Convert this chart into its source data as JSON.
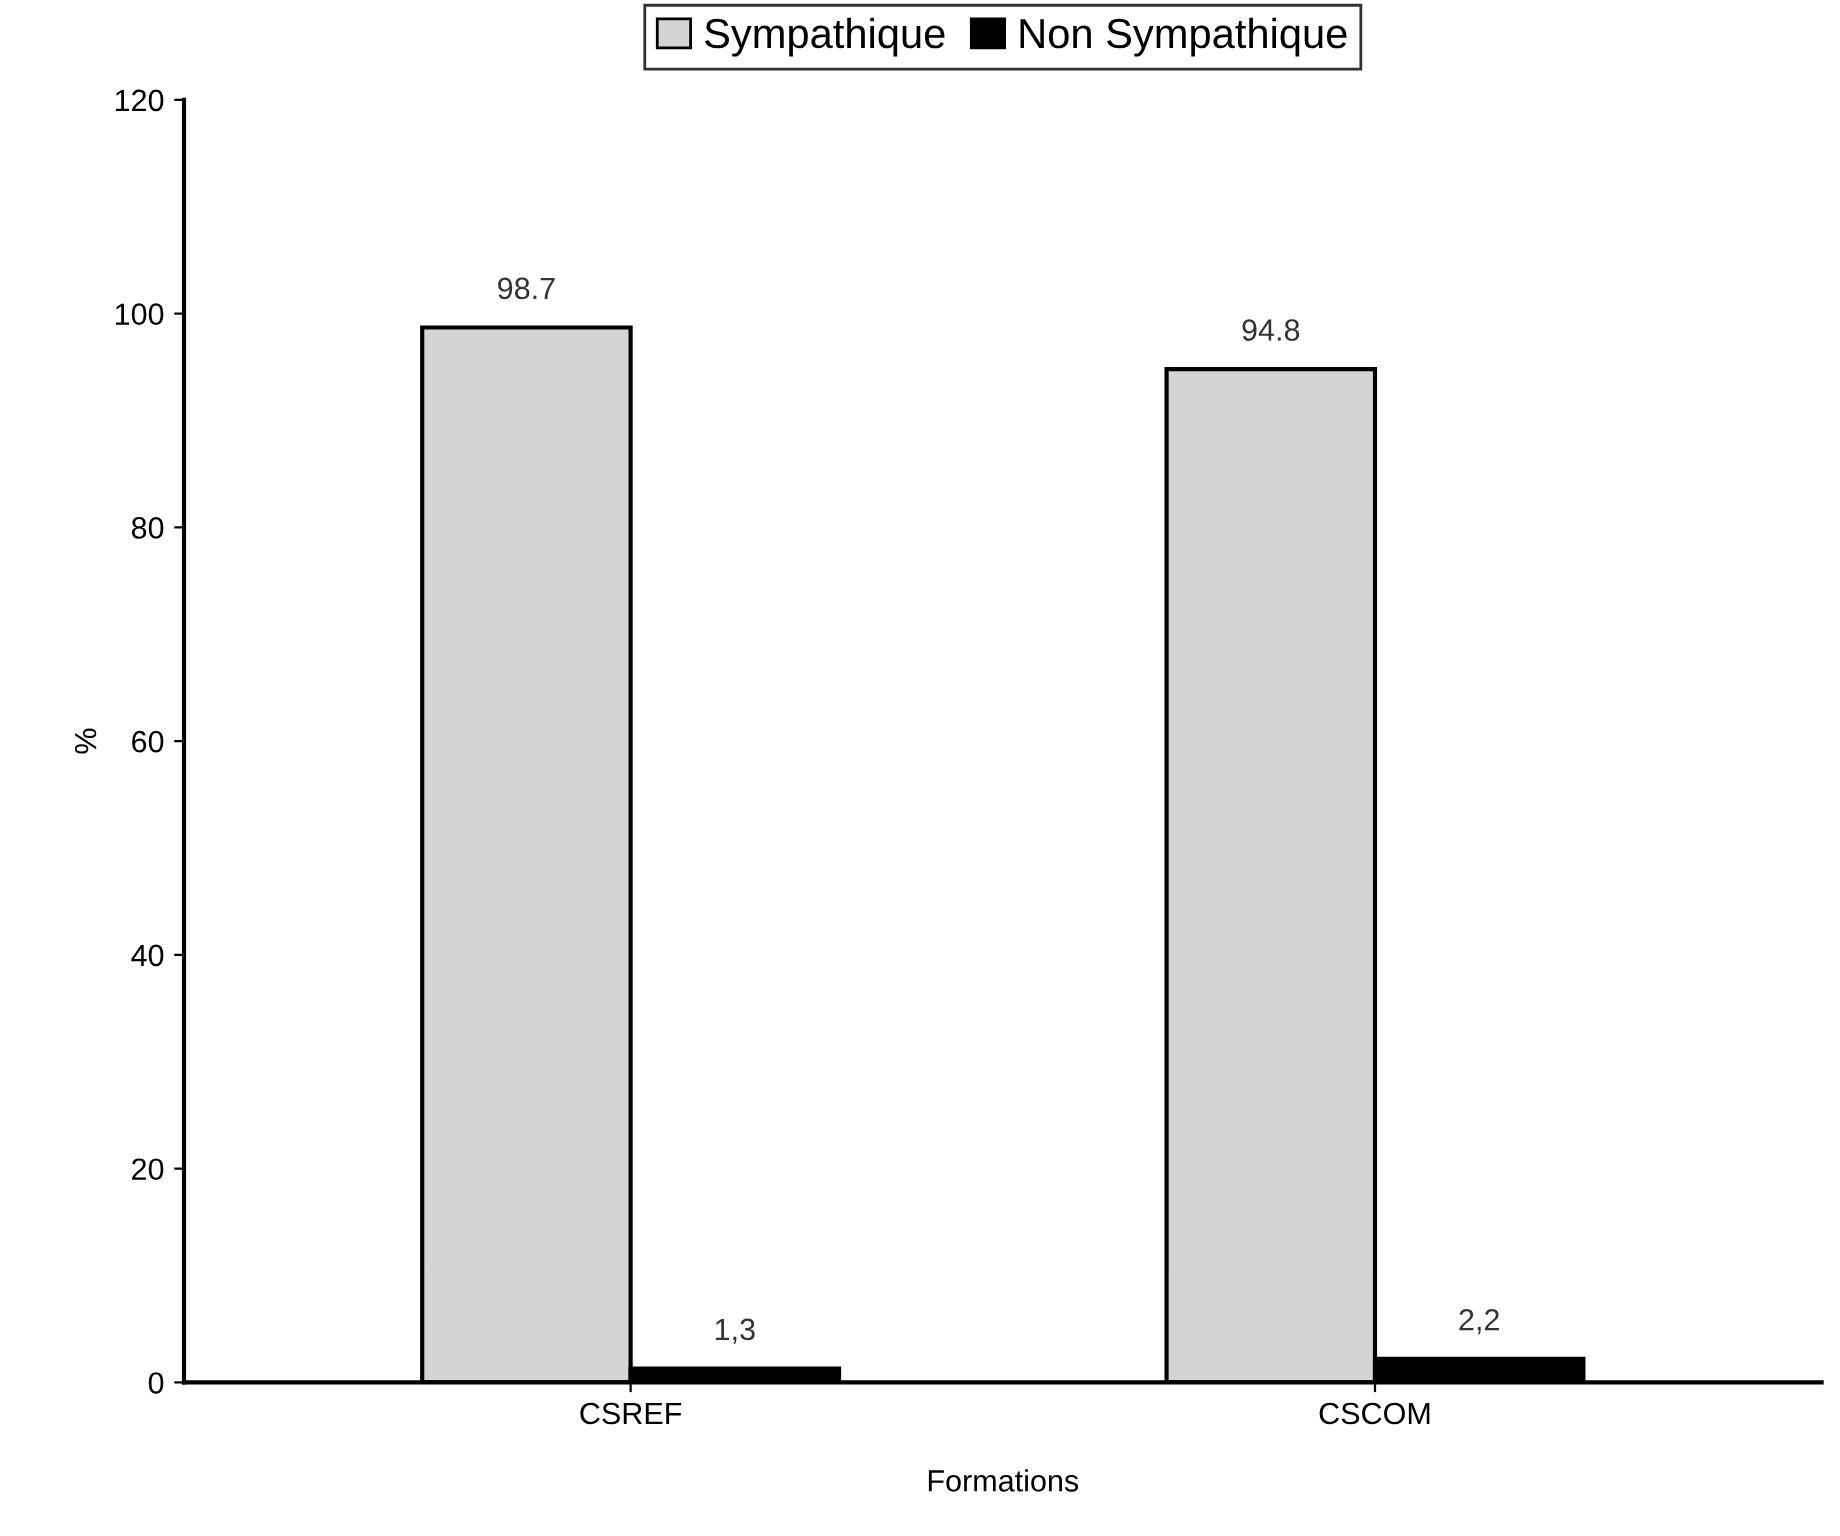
{
  "chart_data": {
    "type": "bar",
    "categories": [
      "CSREF",
      "CSCOM"
    ],
    "series": [
      {
        "name": "Sympathique",
        "color": "#d4d4d4",
        "values": [
          98.7,
          94.8
        ],
        "value_labels": [
          "98.7",
          "94.8"
        ]
      },
      {
        "name": "Non Sympathique",
        "color": "#000000",
        "values": [
          1.3,
          2.2
        ],
        "value_labels": [
          "1,3",
          "2,2"
        ]
      }
    ],
    "xlabel": "Formations",
    "ylabel": "%",
    "ylim": [
      0,
      120
    ],
    "yticks": [
      0,
      20,
      40,
      60,
      80,
      100,
      120
    ],
    "grid": false,
    "legend": "top"
  }
}
